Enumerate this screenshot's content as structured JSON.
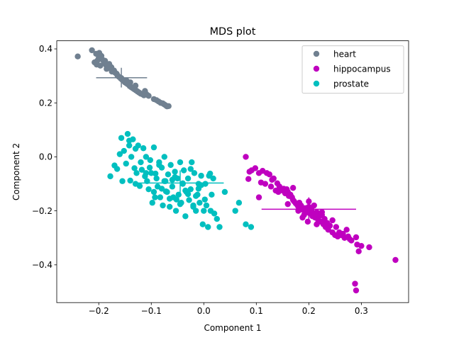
{
  "chart_data": {
    "type": "scatter",
    "title": "MDS plot",
    "xlabel": "Component 1",
    "ylabel": "Component 2",
    "xlim": [
      -0.28,
      0.39
    ],
    "ylim": [
      -0.54,
      0.43
    ],
    "x_ticks": [
      -0.2,
      -0.1,
      0.0,
      0.1,
      0.2,
      0.3
    ],
    "x_tick_labels": [
      "−0.2",
      "−0.1",
      "0.0",
      "0.1",
      "0.2",
      "0.3"
    ],
    "y_ticks": [
      -0.4,
      -0.2,
      0.0,
      0.2,
      0.4
    ],
    "y_tick_labels": [
      "−0.4",
      "−0.2",
      "0.0",
      "0.2",
      "0.4"
    ],
    "grid": false,
    "legend_position": "top-right",
    "series": [
      {
        "name": "heart",
        "color": "#708090",
        "x": [
          -0.24,
          -0.213,
          -0.205,
          -0.2,
          -0.208,
          -0.204,
          -0.199,
          -0.195,
          -0.193,
          -0.19,
          -0.188,
          -0.186,
          -0.183,
          -0.18,
          -0.178,
          -0.176,
          -0.174,
          -0.171,
          -0.169,
          -0.166,
          -0.164,
          -0.161,
          -0.158,
          -0.155,
          -0.152,
          -0.15,
          -0.147,
          -0.144,
          -0.141,
          -0.138,
          -0.135,
          -0.132,
          -0.129,
          -0.126,
          -0.123,
          -0.12,
          -0.117,
          -0.114,
          -0.111,
          -0.108,
          -0.105,
          -0.095,
          -0.09,
          -0.086,
          -0.082,
          -0.078,
          -0.075,
          -0.072,
          -0.07,
          -0.067,
          -0.203,
          -0.197,
          -0.185,
          -0.175,
          -0.165,
          -0.157,
          -0.147,
          -0.14,
          -0.13,
          -0.112
        ],
        "y": [
          0.372,
          0.395,
          0.382,
          0.366,
          0.35,
          0.342,
          0.385,
          0.374,
          0.36,
          0.348,
          0.356,
          0.34,
          0.335,
          0.344,
          0.328,
          0.332,
          0.318,
          0.32,
          0.312,
          0.308,
          0.3,
          0.296,
          0.29,
          0.285,
          0.28,
          0.276,
          0.272,
          0.268,
          0.262,
          0.258,
          0.254,
          0.25,
          0.246,
          0.242,
          0.238,
          0.234,
          0.232,
          0.228,
          0.236,
          0.23,
          0.226,
          0.214,
          0.21,
          0.205,
          0.2,
          0.198,
          0.194,
          0.19,
          0.187,
          0.188,
          0.356,
          0.338,
          0.326,
          0.316,
          0.304,
          0.292,
          0.282,
          0.276,
          0.264,
          0.244
        ]
      },
      {
        "name": "hippocampus",
        "color": "#bf00bf",
        "x": [
          0.08,
          0.085,
          0.087,
          0.091,
          0.098,
          0.105,
          0.109,
          0.112,
          0.117,
          0.12,
          0.125,
          0.128,
          0.13,
          0.133,
          0.137,
          0.14,
          0.142,
          0.144,
          0.147,
          0.15,
          0.152,
          0.155,
          0.158,
          0.16,
          0.162,
          0.165,
          0.168,
          0.17,
          0.172,
          0.175,
          0.178,
          0.18,
          0.182,
          0.185,
          0.187,
          0.19,
          0.192,
          0.195,
          0.197,
          0.2,
          0.202,
          0.205,
          0.207,
          0.21,
          0.212,
          0.215,
          0.218,
          0.22,
          0.222,
          0.225,
          0.228,
          0.23,
          0.232,
          0.235,
          0.237,
          0.24,
          0.245,
          0.25,
          0.252,
          0.255,
          0.258,
          0.262,
          0.265,
          0.268,
          0.272,
          0.275,
          0.278,
          0.281,
          0.29,
          0.292,
          0.295,
          0.3,
          0.315,
          0.365,
          0.288,
          0.29,
          0.18,
          0.191,
          0.198,
          0.188,
          0.16,
          0.105,
          0.17,
          0.21,
          0.225,
          0.245,
          0.2,
          0.215
        ],
        "y": [
          0.0,
          -0.082,
          -0.055,
          -0.05,
          -0.042,
          -0.06,
          -0.095,
          -0.052,
          -0.1,
          -0.06,
          -0.065,
          -0.11,
          -0.085,
          -0.08,
          -0.125,
          -0.098,
          -0.13,
          -0.11,
          -0.12,
          -0.125,
          -0.118,
          -0.135,
          -0.12,
          -0.13,
          -0.145,
          -0.14,
          -0.15,
          -0.16,
          -0.165,
          -0.172,
          -0.178,
          -0.185,
          -0.17,
          -0.18,
          -0.195,
          -0.19,
          -0.2,
          -0.19,
          -0.205,
          -0.185,
          -0.21,
          -0.195,
          -0.22,
          -0.21,
          -0.225,
          -0.205,
          -0.235,
          -0.22,
          -0.24,
          -0.215,
          -0.25,
          -0.23,
          -0.26,
          -0.245,
          -0.27,
          -0.255,
          -0.28,
          -0.29,
          -0.26,
          -0.295,
          -0.28,
          -0.29,
          -0.285,
          -0.3,
          -0.27,
          -0.295,
          -0.305,
          -0.31,
          -0.298,
          -0.325,
          -0.35,
          -0.33,
          -0.335,
          -0.382,
          -0.47,
          -0.495,
          -0.2,
          -0.215,
          -0.24,
          -0.225,
          -0.175,
          -0.15,
          -0.115,
          -0.18,
          -0.205,
          -0.235,
          -0.165,
          -0.25
        ]
      },
      {
        "name": "prostate",
        "color": "#00bfbf",
        "x": [
          -0.178,
          -0.17,
          -0.165,
          -0.16,
          -0.157,
          -0.155,
          -0.152,
          -0.148,
          -0.145,
          -0.142,
          -0.14,
          -0.138,
          -0.135,
          -0.132,
          -0.13,
          -0.128,
          -0.125,
          -0.122,
          -0.12,
          -0.118,
          -0.115,
          -0.112,
          -0.11,
          -0.108,
          -0.105,
          -0.103,
          -0.1,
          -0.098,
          -0.095,
          -0.093,
          -0.09,
          -0.088,
          -0.085,
          -0.083,
          -0.08,
          -0.078,
          -0.075,
          -0.073,
          -0.07,
          -0.068,
          -0.065,
          -0.063,
          -0.06,
          -0.058,
          -0.055,
          -0.053,
          -0.05,
          -0.048,
          -0.045,
          -0.043,
          -0.04,
          -0.038,
          -0.035,
          -0.033,
          -0.03,
          -0.028,
          -0.025,
          -0.023,
          -0.02,
          -0.018,
          -0.015,
          -0.012,
          -0.01,
          -0.008,
          -0.005,
          -0.002,
          0.0,
          0.003,
          0.005,
          0.008,
          0.01,
          0.013,
          0.015,
          0.018,
          0.02,
          0.025,
          0.03,
          0.04,
          0.06,
          0.067,
          0.08,
          0.09,
          -0.13,
          -0.11,
          -0.095,
          -0.085,
          -0.075,
          -0.065,
          -0.055,
          -0.045,
          -0.035,
          -0.025,
          -0.015,
          -0.005,
          -0.092,
          -0.072,
          -0.052,
          -0.04,
          -0.03,
          -0.02,
          -0.01,
          0.002,
          0.012,
          -0.142,
          -0.102,
          -0.08,
          -0.06
        ],
        "y": [
          -0.072,
          -0.032,
          -0.045,
          0.01,
          0.07,
          -0.09,
          0.022,
          -0.025,
          0.085,
          0.06,
          -0.088,
          0.0,
          0.065,
          -0.042,
          0.03,
          -0.06,
          0.042,
          -0.108,
          -0.02,
          -0.048,
          0.032,
          -0.072,
          0.0,
          -0.09,
          -0.12,
          -0.04,
          -0.06,
          -0.17,
          0.035,
          -0.15,
          -0.08,
          -0.11,
          -0.02,
          -0.15,
          -0.04,
          -0.18,
          0.0,
          -0.09,
          -0.13,
          -0.065,
          -0.185,
          -0.03,
          -0.11,
          -0.15,
          -0.055,
          -0.2,
          -0.08,
          -0.14,
          -0.02,
          -0.17,
          -0.1,
          -0.05,
          -0.22,
          -0.13,
          -0.08,
          -0.16,
          -0.12,
          -0.02,
          -0.18,
          -0.06,
          -0.2,
          -0.14,
          -0.1,
          -0.17,
          -0.07,
          -0.25,
          -0.2,
          -0.1,
          -0.18,
          -0.26,
          -0.07,
          -0.2,
          -0.14,
          -0.08,
          -0.21,
          -0.23,
          -0.26,
          -0.13,
          -0.2,
          -0.17,
          -0.25,
          -0.26,
          -0.1,
          -0.06,
          -0.13,
          -0.03,
          -0.09,
          -0.155,
          -0.075,
          -0.175,
          -0.125,
          -0.045,
          -0.145,
          -0.105,
          -0.062,
          -0.128,
          -0.158,
          -0.098,
          -0.138,
          -0.185,
          -0.118,
          -0.158,
          -0.062,
          0.042,
          -0.012,
          -0.118,
          -0.085
        ]
      }
    ],
    "centroid_markers": [
      {
        "series": "heart",
        "x": [
          -0.205,
          -0.108
        ],
        "y": [
          0.257,
          0.33
        ],
        "center": [
          -0.157,
          0.293
        ]
      },
      {
        "series": "hippocampus",
        "x": [
          0.11,
          0.29
        ],
        "y": [
          -0.242,
          -0.15
        ],
        "center": [
          0.2,
          -0.194
        ]
      },
      {
        "series": "prostate",
        "x": [
          -0.128,
          0.038
        ],
        "y": [
          -0.145,
          -0.05
        ],
        "center": [
          -0.045,
          -0.097
        ]
      }
    ]
  }
}
